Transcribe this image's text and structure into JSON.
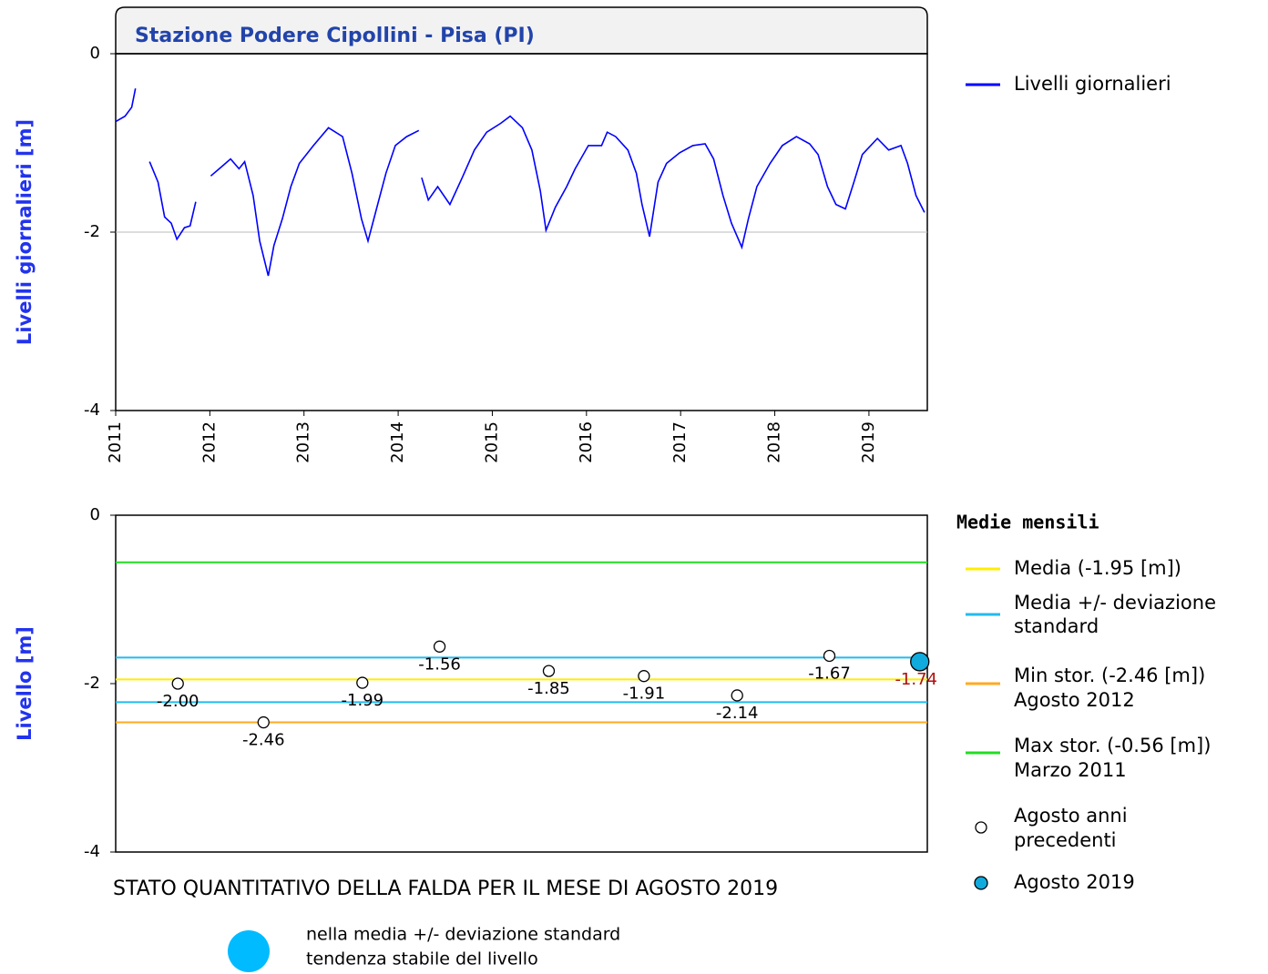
{
  "chart_data": [
    {
      "type": "line",
      "title": "Stazione Podere Cipollini - Pisa (PI)",
      "ylabel": "Livelli giornalieri [m]",
      "x": [
        2011.0,
        2011.1,
        2011.17,
        2011.21,
        2011.28,
        2011.36,
        2011.45,
        2011.52,
        2011.59,
        2011.65,
        2011.73,
        2011.79,
        2011.85,
        2011.93,
        2012.01,
        2012.1,
        2012.22,
        2012.31,
        2012.37,
        2012.46,
        2012.53,
        2012.62,
        2012.68,
        2012.77,
        2012.86,
        2012.95,
        2013.1,
        2013.26,
        2013.41,
        2013.51,
        2013.61,
        2013.68,
        2013.77,
        2013.87,
        2013.97,
        2014.09,
        2014.22,
        2014.23,
        2014.25,
        2014.32,
        2014.42,
        2014.55,
        2014.68,
        2014.81,
        2014.94,
        2015.09,
        2015.19,
        2015.32,
        2015.42,
        2015.51,
        2015.57,
        2015.67,
        2015.79,
        2015.88,
        2016.02,
        2016.16,
        2016.22,
        2016.31,
        2016.44,
        2016.53,
        2016.59,
        2016.67,
        2016.76,
        2016.85,
        2016.99,
        2017.13,
        2017.26,
        2017.35,
        2017.45,
        2017.54,
        2017.65,
        2017.72,
        2017.81,
        2017.95,
        2018.08,
        2018.23,
        2018.37,
        2018.46,
        2018.56,
        2018.65,
        2018.75,
        2018.84,
        2018.93,
        2019.09,
        2019.21,
        2019.34,
        2019.41,
        2019.5,
        2019.59
      ],
      "series": [
        {
          "name": "Livelli giornalieri",
          "color": "#0000ff",
          "values": [
            -0.76,
            -0.7,
            -0.6,
            -0.39,
            null,
            -1.21,
            -1.44,
            -1.83,
            -1.9,
            -2.08,
            -1.95,
            -1.93,
            -1.66,
            null,
            -1.37,
            -1.29,
            -1.18,
            -1.29,
            -1.21,
            -1.59,
            -2.1,
            -2.49,
            -2.15,
            -1.85,
            -1.49,
            -1.23,
            -1.03,
            -0.83,
            -0.93,
            -1.34,
            -1.85,
            -2.1,
            -1.74,
            -1.34,
            -1.03,
            -0.93,
            -0.86,
            null,
            -1.39,
            -1.64,
            -1.49,
            -1.69,
            -1.39,
            -1.08,
            -0.88,
            -0.78,
            -0.7,
            -0.83,
            -1.08,
            -1.54,
            -1.98,
            -1.72,
            -1.49,
            -1.29,
            -1.03,
            -1.03,
            -0.88,
            -0.93,
            -1.08,
            -1.34,
            -1.69,
            -2.05,
            -1.44,
            -1.23,
            -1.11,
            -1.03,
            -1.01,
            -1.18,
            -1.59,
            -1.9,
            -2.17,
            -1.85,
            -1.49,
            -1.23,
            -1.03,
            -0.93,
            -1.01,
            -1.13,
            -1.49,
            -1.69,
            -1.74,
            -1.44,
            -1.13,
            -0.95,
            -1.08,
            -1.03,
            -1.23,
            -1.59,
            -1.78
          ]
        }
      ],
      "xlim": [
        2011,
        2019.62
      ],
      "xticks": [
        2011,
        2012,
        2013,
        2014,
        2015,
        2016,
        2017,
        2018,
        2019
      ],
      "ylim": [
        -4,
        0
      ],
      "yticks": [
        0,
        -2,
        -4
      ],
      "grid": true,
      "legend": "right"
    },
    {
      "type": "scatter",
      "ylabel": "Livello [m]",
      "legend_title": "Medie mensili",
      "xlim": [
        2011,
        2019.62
      ],
      "ylim": [
        -4,
        0
      ],
      "yticks": [
        0,
        -2,
        -4
      ],
      "reference_lines": [
        {
          "name": [
            "Media (-1.95 [m])"
          ],
          "color": "#ffee00",
          "values": [
            -1.95
          ]
        },
        {
          "name": [
            "Media +/- deviazione",
            "standard"
          ],
          "color": "#22bbee",
          "values": [
            -1.69,
            -2.22
          ]
        },
        {
          "name": [
            "Min stor. (-2.46 [m])",
            "Agosto 2012"
          ],
          "color": "#ffaa22",
          "values": [
            -2.46
          ]
        },
        {
          "name": [
            "Max stor. (-0.56 [m])",
            "Marzo 2011"
          ],
          "color": "#22dd22",
          "values": [
            -0.56
          ]
        }
      ],
      "series": [
        {
          "name": [
            "Agosto anni",
            "precedenti"
          ],
          "color": "#ffffff",
          "label_color": "#000000",
          "x": [
            2011.66,
            2012.57,
            2013.62,
            2014.44,
            2015.6,
            2016.61,
            2017.6,
            2018.58
          ],
          "values": [
            -2.0,
            -2.46,
            -1.99,
            -1.56,
            -1.85,
            -1.91,
            -2.14,
            -1.67
          ],
          "value_labels": [
            "-2.00",
            "-2.46",
            "-1.99",
            "-1.56",
            "-1.85",
            "-1.91",
            "-2.14",
            "-1.67"
          ]
        },
        {
          "name": [
            "Agosto 2019"
          ],
          "color": "#11aadd",
          "label_color": "#b01010",
          "x": [
            2019.54
          ],
          "values": [
            -1.74
          ],
          "value_labels": [
            "-1.74"
          ]
        }
      ]
    }
  ],
  "status": {
    "title": "STATO QUANTITATIVO DELLA FALDA PER IL MESE DI AGOSTO 2019",
    "color": "#00bbff",
    "lines": [
      "nella media +/- deviazione standard",
      "tendenza stabile del livello"
    ]
  }
}
